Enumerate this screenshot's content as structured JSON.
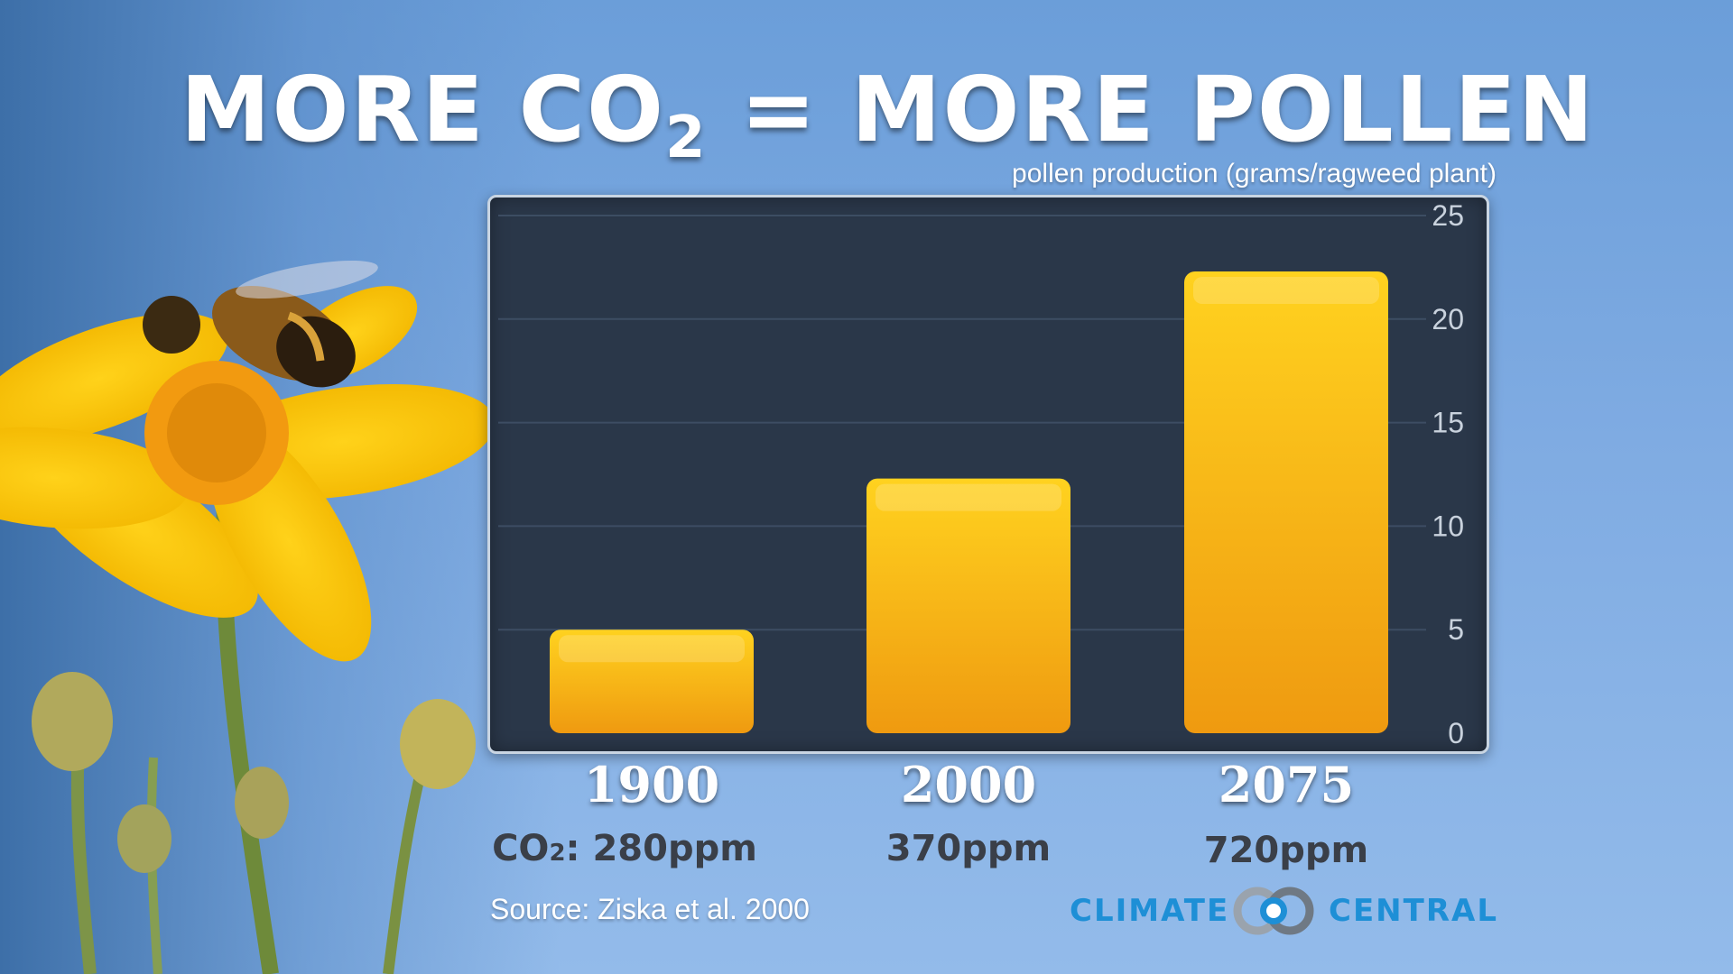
{
  "title": {
    "before_sub": "MORE CO",
    "sub": "2",
    "after_sub": " = MORE POLLEN"
  },
  "unit_label": "pollen production (grams/ragweed plant)",
  "chart_data": {
    "type": "bar",
    "title": "MORE CO2 = MORE POLLEN",
    "ylabel": "pollen production (grams/ragweed plant)",
    "categories": [
      "1900",
      "2000",
      "2075"
    ],
    "values": [
      5,
      12.3,
      22.3
    ],
    "ylim": [
      0,
      25
    ],
    "yticks": [
      0,
      5,
      10,
      15,
      20,
      25
    ],
    "grid": true,
    "bar_color": "#f6a91b",
    "co2_labels": [
      {
        "prefix": "CO",
        "sub": "2",
        "suffix": ": ",
        "value": "280ppm"
      },
      {
        "prefix": "",
        "sub": "",
        "suffix": "",
        "value": "370ppm"
      },
      {
        "prefix": "",
        "sub": "",
        "suffix": "",
        "value": "720ppm"
      }
    ]
  },
  "source": "Source: Ziska et al. 2000",
  "logo": {
    "word_1": "CLIMATE",
    "word_2": "CENTRAL",
    "icon": "climate-central-rings-icon",
    "color": "#1e8fd6"
  },
  "colors": {
    "background": "#7fabe2",
    "plot_background": "#2a3749",
    "bar_top": "#ffd21f",
    "bar_bottom": "#ef9a10"
  }
}
